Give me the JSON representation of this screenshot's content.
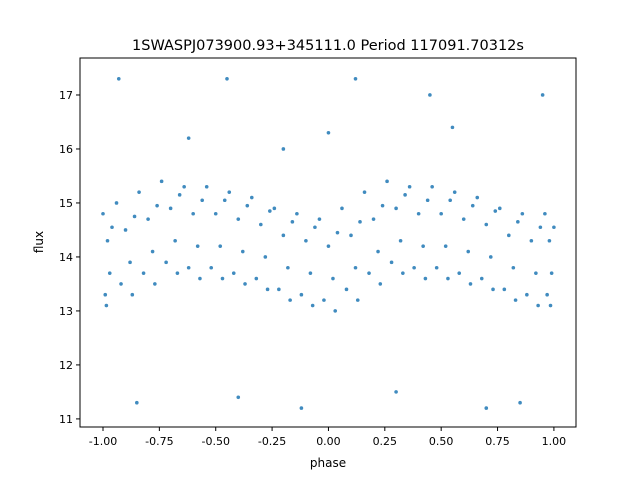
{
  "chart_data": {
    "type": "scatter",
    "title": "1SWASPJ073900.93+345111.0 Period 117091.70312s",
    "xlabel": "phase",
    "ylabel": "flux",
    "xlim": [
      -1.102,
      1.098
    ],
    "ylim": [
      10.85,
      17.685
    ],
    "xticks": [
      "-1.00",
      "-0.75",
      "-0.50",
      "-0.25",
      "0.00",
      "0.25",
      "0.50",
      "0.75",
      "1.00"
    ],
    "yticks": [
      "11",
      "12",
      "13",
      "14",
      "15",
      "16",
      "17"
    ],
    "grid": false,
    "color": "#1f77b4",
    "points": [
      [
        -1.0,
        14.8
      ],
      [
        -0.99,
        13.3
      ],
      [
        -0.98,
        14.3
      ],
      [
        -0.97,
        13.7
      ],
      [
        -0.96,
        14.55
      ],
      [
        -0.985,
        13.1
      ],
      [
        -0.94,
        15.0
      ],
      [
        -0.92,
        13.5
      ],
      [
        -0.9,
        14.5
      ],
      [
        -0.88,
        13.9
      ],
      [
        -0.86,
        14.75
      ],
      [
        -0.87,
        13.3
      ],
      [
        -0.84,
        15.2
      ],
      [
        -0.82,
        13.7
      ],
      [
        -0.8,
        14.7
      ],
      [
        -0.78,
        14.1
      ],
      [
        -0.76,
        14.95
      ],
      [
        -0.77,
        13.5
      ],
      [
        -0.74,
        15.4
      ],
      [
        -0.72,
        13.9
      ],
      [
        -0.7,
        14.9
      ],
      [
        -0.68,
        14.3
      ],
      [
        -0.66,
        15.15
      ],
      [
        -0.67,
        13.7
      ],
      [
        -0.64,
        15.3
      ],
      [
        -0.62,
        13.8
      ],
      [
        -0.6,
        14.8
      ],
      [
        -0.58,
        14.2
      ],
      [
        -0.56,
        15.05
      ],
      [
        -0.57,
        13.6
      ],
      [
        -0.54,
        15.3
      ],
      [
        -0.52,
        13.8
      ],
      [
        -0.5,
        14.8
      ],
      [
        -0.48,
        14.2
      ],
      [
        -0.46,
        15.05
      ],
      [
        -0.47,
        13.6
      ],
      [
        -0.44,
        15.2
      ],
      [
        -0.42,
        13.7
      ],
      [
        -0.4,
        14.7
      ],
      [
        -0.38,
        14.1
      ],
      [
        -0.36,
        14.95
      ],
      [
        -0.37,
        13.5
      ],
      [
        -0.34,
        15.1
      ],
      [
        -0.32,
        13.6
      ],
      [
        -0.3,
        14.6
      ],
      [
        -0.28,
        14.0
      ],
      [
        -0.26,
        14.85
      ],
      [
        -0.27,
        13.4
      ],
      [
        -0.24,
        14.9
      ],
      [
        -0.22,
        13.4
      ],
      [
        -0.2,
        14.4
      ],
      [
        -0.18,
        13.8
      ],
      [
        -0.16,
        14.65
      ],
      [
        -0.17,
        13.2
      ],
      [
        -0.14,
        14.8
      ],
      [
        -0.12,
        13.3
      ],
      [
        -0.1,
        14.3
      ],
      [
        -0.08,
        13.7
      ],
      [
        -0.06,
        14.55
      ],
      [
        -0.07,
        13.1
      ],
      [
        -0.04,
        14.7
      ],
      [
        -0.02,
        13.2
      ],
      [
        0.0,
        14.2
      ],
      [
        0.02,
        13.6
      ],
      [
        0.04,
        14.45
      ],
      [
        0.03,
        13.0
      ],
      [
        0.06,
        14.9
      ],
      [
        0.08,
        13.4
      ],
      [
        0.1,
        14.4
      ],
      [
        0.12,
        13.8
      ],
      [
        0.14,
        14.65
      ],
      [
        0.13,
        13.2
      ],
      [
        0.16,
        15.2
      ],
      [
        0.18,
        13.7
      ],
      [
        0.2,
        14.7
      ],
      [
        0.22,
        14.1
      ],
      [
        0.24,
        14.95
      ],
      [
        0.23,
        13.5
      ],
      [
        0.26,
        15.4
      ],
      [
        0.28,
        13.9
      ],
      [
        0.3,
        14.9
      ],
      [
        0.32,
        14.3
      ],
      [
        0.34,
        15.15
      ],
      [
        0.33,
        13.7
      ],
      [
        0.36,
        15.3
      ],
      [
        0.38,
        13.8
      ],
      [
        0.4,
        14.8
      ],
      [
        0.42,
        14.2
      ],
      [
        0.44,
        15.05
      ],
      [
        0.43,
        13.6
      ],
      [
        0.46,
        15.3
      ],
      [
        0.48,
        13.8
      ],
      [
        0.5,
        14.8
      ],
      [
        0.52,
        14.2
      ],
      [
        0.54,
        15.05
      ],
      [
        0.53,
        13.6
      ],
      [
        0.56,
        15.2
      ],
      [
        0.58,
        13.7
      ],
      [
        0.6,
        14.7
      ],
      [
        0.62,
        14.1
      ],
      [
        0.64,
        14.95
      ],
      [
        0.63,
        13.5
      ],
      [
        0.66,
        15.1
      ],
      [
        0.68,
        13.6
      ],
      [
        0.7,
        14.6
      ],
      [
        0.72,
        14.0
      ],
      [
        0.74,
        14.85
      ],
      [
        0.73,
        13.4
      ],
      [
        0.76,
        14.9
      ],
      [
        0.78,
        13.4
      ],
      [
        0.8,
        14.4
      ],
      [
        0.82,
        13.8
      ],
      [
        0.84,
        14.65
      ],
      [
        0.83,
        13.2
      ],
      [
        0.86,
        14.8
      ],
      [
        0.88,
        13.3
      ],
      [
        0.9,
        14.3
      ],
      [
        0.92,
        13.7
      ],
      [
        0.94,
        14.55
      ],
      [
        0.93,
        13.1
      ],
      [
        0.96,
        14.8
      ],
      [
        0.97,
        13.3
      ],
      [
        0.98,
        14.3
      ],
      [
        0.99,
        13.7
      ],
      [
        1.0,
        14.55
      ],
      [
        0.985,
        13.1
      ],
      [
        -0.93,
        17.3
      ],
      [
        -0.85,
        11.3
      ],
      [
        -0.62,
        16.2
      ],
      [
        -0.45,
        17.3
      ],
      [
        -0.2,
        16.0
      ],
      [
        -0.12,
        11.2
      ],
      [
        0.0,
        16.3
      ],
      [
        0.12,
        17.3
      ],
      [
        0.3,
        11.5
      ],
      [
        0.55,
        16.4
      ],
      [
        0.7,
        11.2
      ],
      [
        0.85,
        11.3
      ],
      [
        0.95,
        17.0
      ],
      [
        -0.4,
        11.4
      ],
      [
        0.45,
        17.0
      ]
    ]
  }
}
